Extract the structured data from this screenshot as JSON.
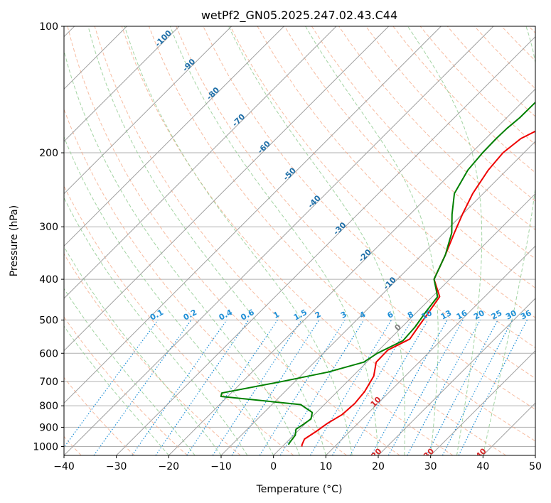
{
  "chart_data": {
    "type": "line",
    "title": "wetPf2_GN05.2025.247.02.43.C44",
    "xlabel": "Temperature (°C)",
    "ylabel": "Pressure (hPa)",
    "xlim": [
      -40,
      50
    ],
    "ylim": [
      1050,
      100
    ],
    "y_scale": "log",
    "grid": true,
    "x_ticks": [
      -40,
      -30,
      -20,
      -10,
      0,
      10,
      20,
      30,
      40,
      50
    ],
    "y_ticks": [
      100,
      200,
      300,
      400,
      500,
      600,
      700,
      800,
      900,
      1000
    ],
    "colors": {
      "temperature": "#ee0000",
      "dewpoint": "#008000",
      "dry_adiabat": "#f4a582",
      "moist_adiabat": "#8cc98c",
      "mixing_ratio": "#1f8fd6",
      "isotherm": "#a0a0a0",
      "isotherm_label": "#1f6fa8",
      "positive_label": "#d62728"
    },
    "series": [
      {
        "key": "temperature",
        "points": [
          [
            -5.2,
            100
          ],
          [
            -8,
            116
          ],
          [
            -9.6,
            135
          ],
          [
            -10,
            150
          ],
          [
            -10.4,
            165
          ],
          [
            -11.6,
            176
          ],
          [
            -13.3,
            185
          ],
          [
            -14,
            200
          ],
          [
            -13.5,
            220
          ],
          [
            -12,
            250
          ],
          [
            -10,
            280
          ],
          [
            -8,
            310
          ],
          [
            -5.5,
            350
          ],
          [
            -3,
            400
          ],
          [
            1.4,
            440
          ],
          [
            2.3,
            480
          ],
          [
            3.1,
            520
          ],
          [
            3.8,
            555
          ],
          [
            1.7,
            590
          ],
          [
            1.8,
            630
          ],
          [
            4,
            680
          ],
          [
            5.2,
            740
          ],
          [
            5.6,
            790
          ],
          [
            5.3,
            840
          ],
          [
            4.2,
            880
          ],
          [
            3.6,
            920
          ],
          [
            2.8,
            960
          ],
          [
            3.4,
            990
          ],
          [
            3.7,
            1000
          ]
        ]
      },
      {
        "key": "dewpoint",
        "points": [
          [
            -13,
            100
          ],
          [
            -16,
            120
          ],
          [
            -17.4,
            140
          ],
          [
            -17.5,
            165
          ],
          [
            -17.9,
            175
          ],
          [
            -18,
            185
          ],
          [
            -17.9,
            200
          ],
          [
            -17.4,
            220
          ],
          [
            -15.5,
            250
          ],
          [
            -12,
            280
          ],
          [
            -8.5,
            310
          ],
          [
            -5.5,
            350
          ],
          [
            -3,
            400
          ],
          [
            1,
            440
          ],
          [
            1.7,
            480
          ],
          [
            2.5,
            520
          ],
          [
            2.8,
            560
          ],
          [
            0.3,
            600
          ],
          [
            -0.6,
            630
          ],
          [
            -5.5,
            665
          ],
          [
            -12.4,
            700
          ],
          [
            -21.8,
            746
          ],
          [
            -21.3,
            760
          ],
          [
            -4.5,
            795
          ],
          [
            -0.8,
            830
          ],
          [
            0.2,
            860
          ],
          [
            -0.2,
            885
          ],
          [
            -0.7,
            910
          ],
          [
            0.3,
            940
          ],
          [
            0.6,
            975
          ],
          [
            0.8,
            990
          ]
        ]
      }
    ],
    "isotherm_labels": [
      -100,
      -90,
      -80,
      -70,
      -60,
      -50,
      -40,
      -30,
      -20,
      -10
    ],
    "positive_isotherm_labels": [
      0,
      10,
      20,
      30,
      40
    ],
    "mixing_ratio_labels": [
      "0.1",
      "0.2",
      "0.4",
      "0.6",
      "1",
      "1.5",
      "2",
      "3",
      "4",
      "6",
      "8",
      "10",
      "13",
      "16",
      "20",
      "25",
      "30",
      "36"
    ],
    "mixing_ratio_values": [
      0.1,
      0.2,
      0.4,
      0.6,
      1,
      1.5,
      2,
      3,
      4,
      6,
      8,
      10,
      13,
      16,
      20,
      25,
      30,
      36
    ]
  }
}
